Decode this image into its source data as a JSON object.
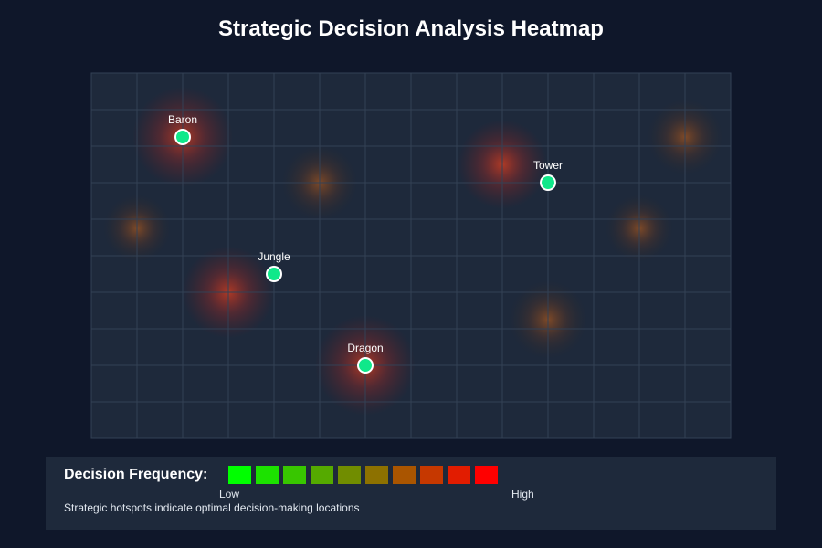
{
  "title": "Strategic Decision Analysis Heatmap",
  "chart_data": {
    "type": "heatmap",
    "title": "Strategic Decision Analysis Heatmap",
    "xlim": [
      0,
      14
    ],
    "ylim": [
      0,
      8
    ],
    "grid": true,
    "hotspots": [
      {
        "x": 2,
        "y": 1.4,
        "intensity": 1.0
      },
      {
        "x": 5,
        "y": 2.4,
        "intensity": 0.55
      },
      {
        "x": 9,
        "y": 2,
        "intensity": 0.8
      },
      {
        "x": 13,
        "y": 1.4,
        "intensity": 0.55
      },
      {
        "x": 1,
        "y": 3.4,
        "intensity": 0.4
      },
      {
        "x": 12,
        "y": 3.4,
        "intensity": 0.4
      },
      {
        "x": 3,
        "y": 4.8,
        "intensity": 0.85
      },
      {
        "x": 10,
        "y": 5.4,
        "intensity": 0.6
      },
      {
        "x": 6,
        "y": 6.4,
        "intensity": 1.0
      }
    ],
    "points": [
      {
        "label": "Baron",
        "x": 2,
        "y": 1.4
      },
      {
        "label": "Tower",
        "x": 10,
        "y": 2.4
      },
      {
        "label": "Jungle",
        "x": 4,
        "y": 4.4
      },
      {
        "label": "Dragon",
        "x": 6,
        "y": 6.4
      }
    ],
    "legend": {
      "title": "Decision Frequency:",
      "colors": [
        "#00ff00",
        "#1ce200",
        "#38c600",
        "#55aa00",
        "#718d00",
        "#8d7100",
        "#aa5500",
        "#c63800",
        "#e21c00",
        "#ff0000"
      ],
      "low": "Low",
      "high": "High",
      "note": "Strategic hotspots indicate optimal decision-making locations"
    }
  },
  "colors": {
    "background": "#0f172a",
    "panel": "#1e293b",
    "grid": "#334155",
    "point_fill": "#10e88a",
    "point_stroke": "#ffffff"
  }
}
